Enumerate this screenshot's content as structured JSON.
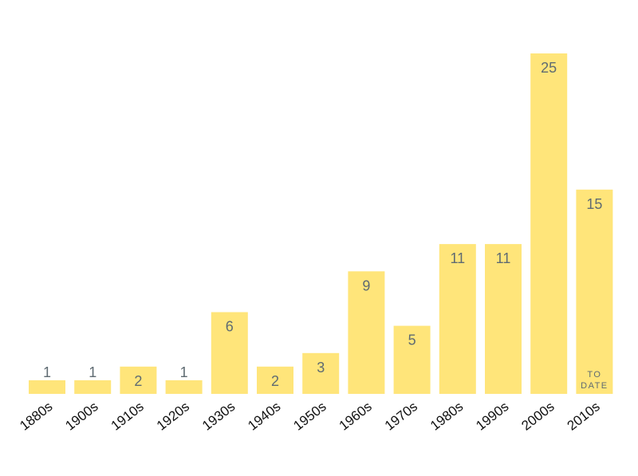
{
  "chart_data": {
    "type": "bar",
    "categories": [
      "1880s",
      "1900s",
      "1910s",
      "1920s",
      "1930s",
      "1940s",
      "1950s",
      "1960s",
      "1970s",
      "1980s",
      "1990s",
      "2000s",
      "2010s"
    ],
    "values": [
      1,
      1,
      2,
      1,
      6,
      2,
      3,
      9,
      5,
      11,
      11,
      25,
      15
    ],
    "title": "",
    "xlabel": "",
    "ylabel": "",
    "ylim": [
      0,
      25
    ],
    "grid": false,
    "bar_color": "#FFE57A",
    "label_color": "#5f6b72",
    "annotations": [
      {
        "category": "2010s",
        "lines": [
          "TO",
          "DATE"
        ]
      }
    ]
  }
}
